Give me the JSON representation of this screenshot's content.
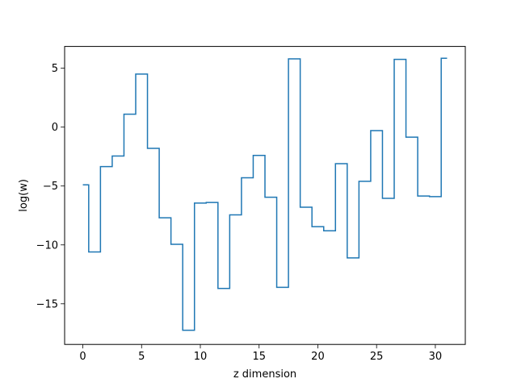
{
  "chart_data": {
    "type": "line",
    "drawstyle": "steps-mid",
    "xlabel": "z dimension",
    "ylabel": "log(w)",
    "xlim": [
      -1.55,
      32.55
    ],
    "ylim": [
      -18.45,
      6.85
    ],
    "xticks": [
      0,
      5,
      10,
      15,
      20,
      25,
      30
    ],
    "xtick_labels": [
      "0",
      "5",
      "10",
      "15",
      "20",
      "25",
      "30"
    ],
    "yticks": [
      5,
      0,
      -5,
      -10,
      -15
    ],
    "ytick_labels": [
      "5",
      "0",
      "−5",
      "−10",
      "−15"
    ],
    "grid": false,
    "series": [
      {
        "color": "#1f77b4",
        "x": [
          0,
          1,
          2,
          3,
          4,
          5,
          6,
          7,
          8,
          9,
          10,
          11,
          12,
          13,
          14,
          15,
          16,
          17,
          18,
          19,
          20,
          21,
          22,
          23,
          24,
          25,
          26,
          27,
          28,
          29,
          30,
          31
        ],
        "y": [
          -4.9,
          -10.6,
          -3.35,
          -2.45,
          1.1,
          4.5,
          -1.8,
          -7.7,
          -9.95,
          -17.25,
          -6.45,
          -6.4,
          -13.7,
          -7.45,
          -4.3,
          -2.4,
          -5.95,
          -13.6,
          5.8,
          -6.8,
          -8.45,
          -8.8,
          -3.1,
          -11.1,
          -4.6,
          -0.3,
          -6.05,
          5.75,
          -0.85,
          -5.85,
          -5.9,
          5.85
        ]
      }
    ]
  }
}
